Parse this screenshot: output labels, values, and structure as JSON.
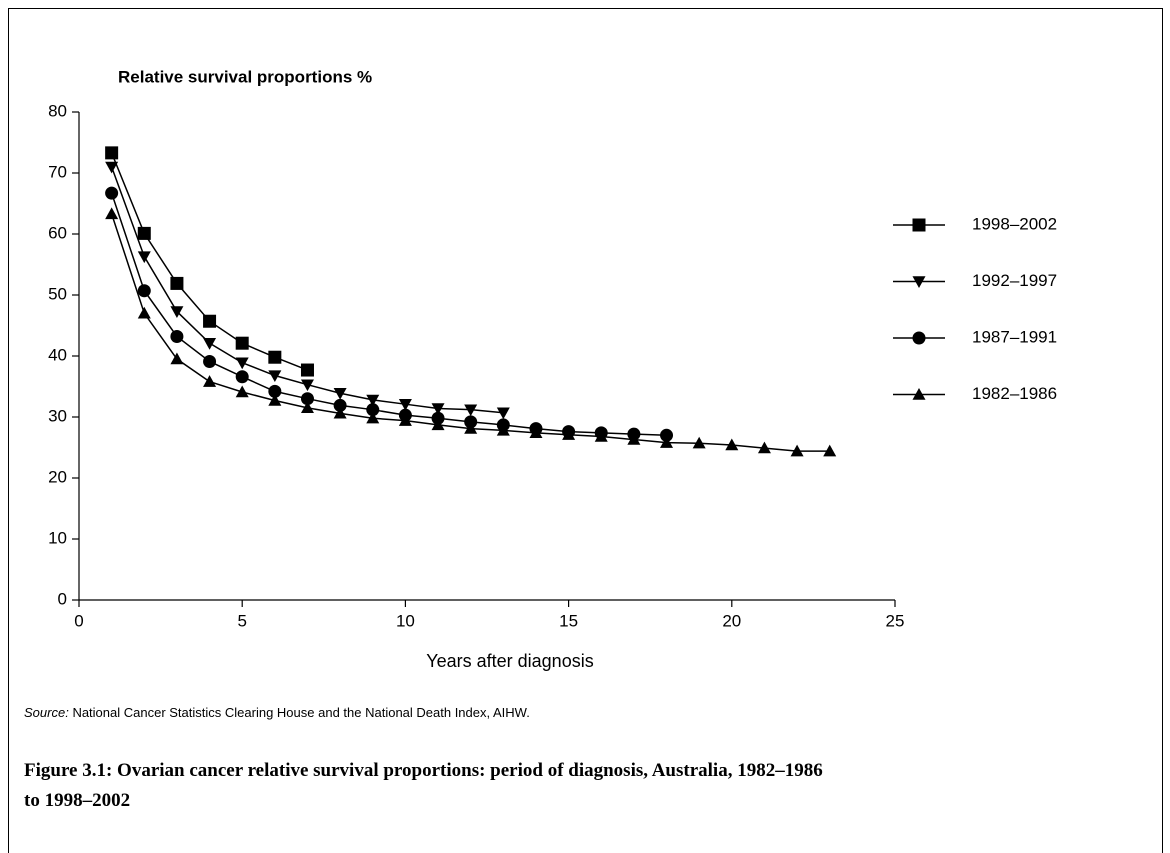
{
  "chart_data": {
    "type": "line",
    "y_label": "Relative survival proportions %",
    "x_label": "Years after diagnosis",
    "xlim": [
      0,
      25
    ],
    "xticks": [
      0,
      5,
      10,
      15,
      20,
      25
    ],
    "ylim": [
      0,
      80
    ],
    "yticks": [
      0,
      10,
      20,
      30,
      40,
      50,
      60,
      70,
      80
    ],
    "series": [
      {
        "name": "1998–2002",
        "color": "#000000",
        "marker": "square",
        "x": [
          1,
          2,
          3,
          4,
          5,
          6,
          7
        ],
        "values": [
          73.3,
          60.1,
          51.9,
          45.7,
          42.1,
          39.8,
          37.7
        ]
      },
      {
        "name": "1992–1997",
        "color": "#000000",
        "marker": "triangle-down",
        "x": [
          1,
          2,
          3,
          4,
          5,
          6,
          7,
          8,
          9,
          10,
          11,
          12,
          13
        ],
        "values": [
          71,
          56.3,
          47.3,
          42.1,
          38.9,
          36.8,
          35.3,
          33.9,
          32.8,
          32.1,
          31.4,
          31.2,
          30.7
        ]
      },
      {
        "name": "1987–1991",
        "color": "#000000",
        "marker": "circle",
        "x": [
          1,
          2,
          3,
          4,
          5,
          6,
          7,
          8,
          9,
          10,
          11,
          12,
          13,
          14,
          15,
          16,
          17,
          18
        ],
        "values": [
          66.7,
          50.7,
          43.2,
          39.1,
          36.6,
          34.2,
          33,
          31.9,
          31.2,
          30.3,
          29.8,
          29.2,
          28.7,
          28.1,
          27.6,
          27.4,
          27.2,
          27.0
        ]
      },
      {
        "name": "1982–1986",
        "color": "#000000",
        "marker": "triangle-up",
        "x": [
          1,
          2,
          3,
          4,
          5,
          6,
          7,
          8,
          9,
          10,
          11,
          12,
          13,
          14,
          15,
          16,
          17,
          18,
          19,
          20,
          21,
          22,
          23
        ],
        "values": [
          63.3,
          47,
          39.5,
          35.8,
          34.1,
          32.7,
          31.5,
          30.6,
          29.8,
          29.4,
          28.7,
          28.1,
          27.8,
          27.4,
          27.1,
          26.8,
          26.3,
          25.8,
          25.7,
          25.4,
          24.9,
          24.4,
          24.4
        ]
      }
    ],
    "source_label": "Source:",
    "source": "National Cancer Statistics Clearing House and the National Death Index, AIHW.",
    "caption": "Figure 3.1: Ovarian cancer relative survival proportions: period of diagnosis, Australia, 1982–1986 to 1998–2002"
  }
}
